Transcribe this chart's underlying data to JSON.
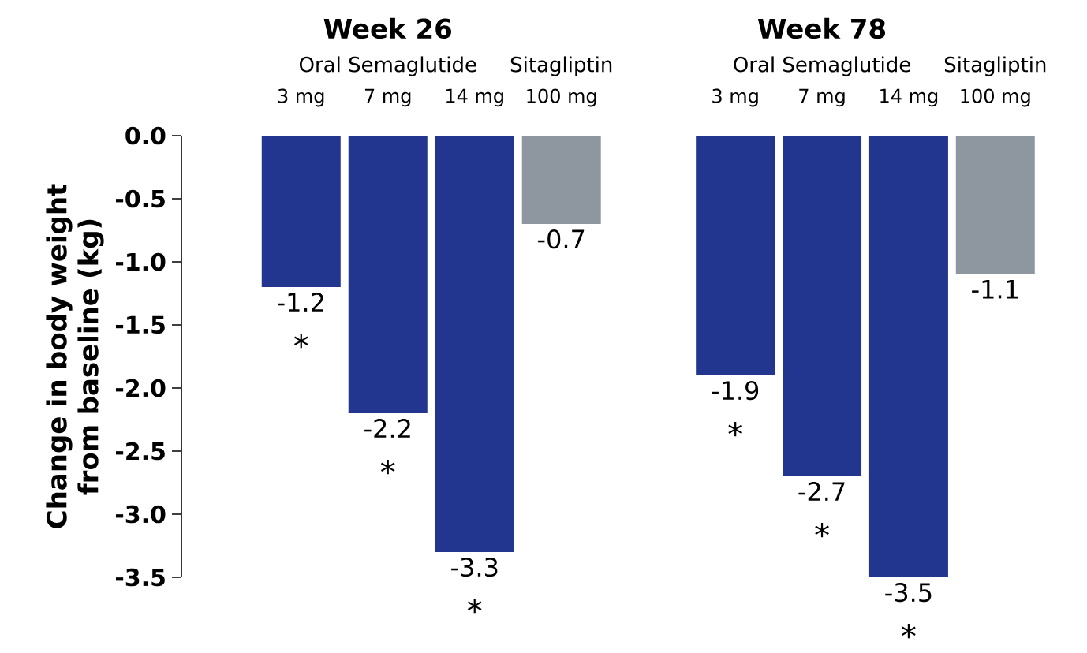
{
  "chart_data": [
    {
      "type": "bar",
      "title": "Week 26",
      "ylabel": "Change in body weight from baseline (kg)",
      "categories": [
        "3 mg",
        "7 mg",
        "14 mg",
        "100 mg"
      ],
      "values": [
        -1.2,
        -2.2,
        -3.3,
        -0.7
      ],
      "colors": [
        "#22358f",
        "#22358f",
        "#22358f",
        "#8e979f"
      ],
      "ylim": [
        -3.5,
        0
      ],
      "yticks": [
        {
          "value": 0,
          "label": "0.0"
        },
        -0.5,
        {
          "value": -1,
          "label": "-1.0"
        },
        -1.5,
        {
          "value": -2,
          "label": "-2.0"
        },
        -2.5,
        {
          "value": -3,
          "label": "-3.0"
        },
        -3.5
      ],
      "data_labels": true,
      "annotations": [
        "Oral Semaglutide",
        "Sitagliptin",
        {
          "text": "*",
          "x": "3 mg",
          "y": -1.2
        },
        {
          "text": "*",
          "x": "7 mg",
          "y": -2.2
        },
        {
          "text": "*",
          "x": "14 mg",
          "y": -3.3
        }
      ]
    },
    {
      "type": "bar",
      "title": "Week 78",
      "categories": [
        "3 mg",
        "7 mg",
        "14 mg",
        "100 mg"
      ],
      "values": [
        -1.9,
        -2.7,
        -3.5,
        -1.1
      ],
      "colors": [
        "#22358f",
        "#22358f",
        "#22358f",
        "#8e979f"
      ],
      "ylim": [
        -3.5,
        0
      ],
      "tick_labels": false,
      "data_labels": true,
      "annotations": [
        "Oral Semaglutide",
        "Sitagliptin",
        {
          "text": "*",
          "x": "3 mg",
          "y": -1.9
        },
        {
          "text": "*",
          "x": "7 mg",
          "y": -2.7
        },
        {
          "text": "*",
          "x": "14 mg",
          "y": -3.5
        }
      ]
    }
  ]
}
